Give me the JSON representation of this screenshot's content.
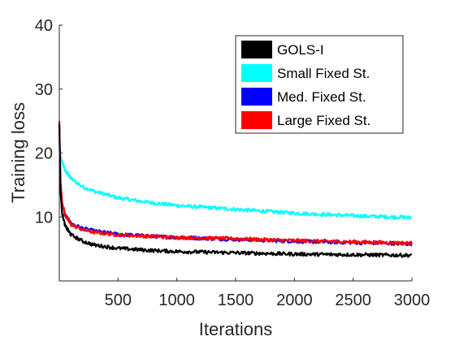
{
  "chart_data": {
    "type": "line",
    "xlabel": "Iterations",
    "ylabel": "Training loss",
    "xlim": [
      0,
      3000
    ],
    "ylim": [
      0,
      40
    ],
    "xticks": [
      500,
      1000,
      1500,
      2000,
      2500,
      3000
    ],
    "yticks": [
      10,
      20,
      30,
      40
    ],
    "grid": false,
    "legend_position": "top-right",
    "series": [
      {
        "name": "GOLS-I",
        "color": "#000000",
        "points": [
          [
            0,
            24.5
          ],
          [
            10,
            14
          ],
          [
            25,
            10.5
          ],
          [
            50,
            8.6
          ],
          [
            100,
            7.2
          ],
          [
            200,
            6.2
          ],
          [
            300,
            5.6
          ],
          [
            500,
            5.1
          ],
          [
            750,
            4.8
          ],
          [
            1000,
            4.6
          ],
          [
            1500,
            4.4
          ],
          [
            2000,
            4.2
          ],
          [
            2500,
            4.1
          ],
          [
            3000,
            4.0
          ]
        ]
      },
      {
        "name": "Small Fixed St.",
        "color": "#00ffff",
        "points": [
          [
            0,
            21
          ],
          [
            10,
            19.5
          ],
          [
            25,
            18.5
          ],
          [
            50,
            17.3
          ],
          [
            100,
            16
          ],
          [
            200,
            14.7
          ],
          [
            300,
            14
          ],
          [
            500,
            13
          ],
          [
            750,
            12.3
          ],
          [
            1000,
            11.8
          ],
          [
            1500,
            11.2
          ],
          [
            2000,
            10.6
          ],
          [
            2500,
            10.2
          ],
          [
            3000,
            9.9
          ]
        ]
      },
      {
        "name": "Med. Fixed St.",
        "color": "#0000ff",
        "points": [
          [
            0,
            24.5
          ],
          [
            10,
            15
          ],
          [
            25,
            12
          ],
          [
            50,
            10.3
          ],
          [
            100,
            9
          ],
          [
            200,
            8.2
          ],
          [
            300,
            7.8
          ],
          [
            500,
            7.3
          ],
          [
            750,
            7
          ],
          [
            1000,
            6.8
          ],
          [
            1500,
            6.5
          ],
          [
            2000,
            6.2
          ],
          [
            2500,
            6.0
          ],
          [
            3000,
            5.8
          ]
        ]
      },
      {
        "name": "Large Fixed St.",
        "color": "#ff0000",
        "points": [
          [
            0,
            25
          ],
          [
            10,
            15.5
          ],
          [
            25,
            12.2
          ],
          [
            50,
            10.3
          ],
          [
            100,
            8.8
          ],
          [
            200,
            8
          ],
          [
            300,
            7.6
          ],
          [
            500,
            7.2
          ],
          [
            750,
            7
          ],
          [
            1000,
            6.8
          ],
          [
            1500,
            6.6
          ],
          [
            2000,
            6.3
          ],
          [
            2500,
            6.1
          ],
          [
            3000,
            5.9
          ]
        ]
      }
    ]
  }
}
